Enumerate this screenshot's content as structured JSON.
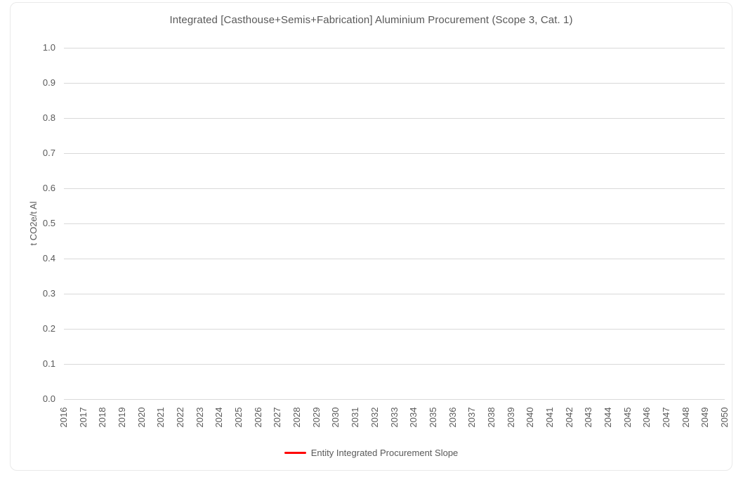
{
  "chart_data": {
    "type": "line",
    "title": "Integrated [Casthouse+Semis+Fabrication] Aluminium Procurement (Scope 3, Cat. 1)",
    "xlabel": "",
    "ylabel": "t CO2e/t Al",
    "ylim": [
      0.0,
      1.0
    ],
    "ytick_step": 0.1,
    "yticks": [
      "1.0",
      "0.9",
      "0.8",
      "0.7",
      "0.6",
      "0.5",
      "0.4",
      "0.3",
      "0.2",
      "0.1",
      "0.0"
    ],
    "x_categories": [
      "2016",
      "2017",
      "2018",
      "2019",
      "2020",
      "2021",
      "2022",
      "2023",
      "2024",
      "2025",
      "2026",
      "2027",
      "2028",
      "2029",
      "2030",
      "2031",
      "2032",
      "2033",
      "2034",
      "2035",
      "2036",
      "2037",
      "2038",
      "2039",
      "2040",
      "2041",
      "2042",
      "2043",
      "2044",
      "2045",
      "2046",
      "2047",
      "2048",
      "2049",
      "2050"
    ],
    "grid": true,
    "gridlines": "horizontal-only",
    "legend": {
      "position": "bottom-center",
      "entries": [
        {
          "label": "Entity Integrated Procurement Slope",
          "color": "#ff0000",
          "marker": "line"
        }
      ]
    },
    "series": [
      {
        "name": "Entity Integrated Procurement Slope",
        "color": "#ff0000",
        "values": []
      }
    ],
    "colors": {
      "gridline": "#d9d9d9",
      "axis_text": "#595959",
      "title_text": "#595959",
      "frame_border": "#e9e9e9",
      "background": "#ffffff"
    }
  }
}
